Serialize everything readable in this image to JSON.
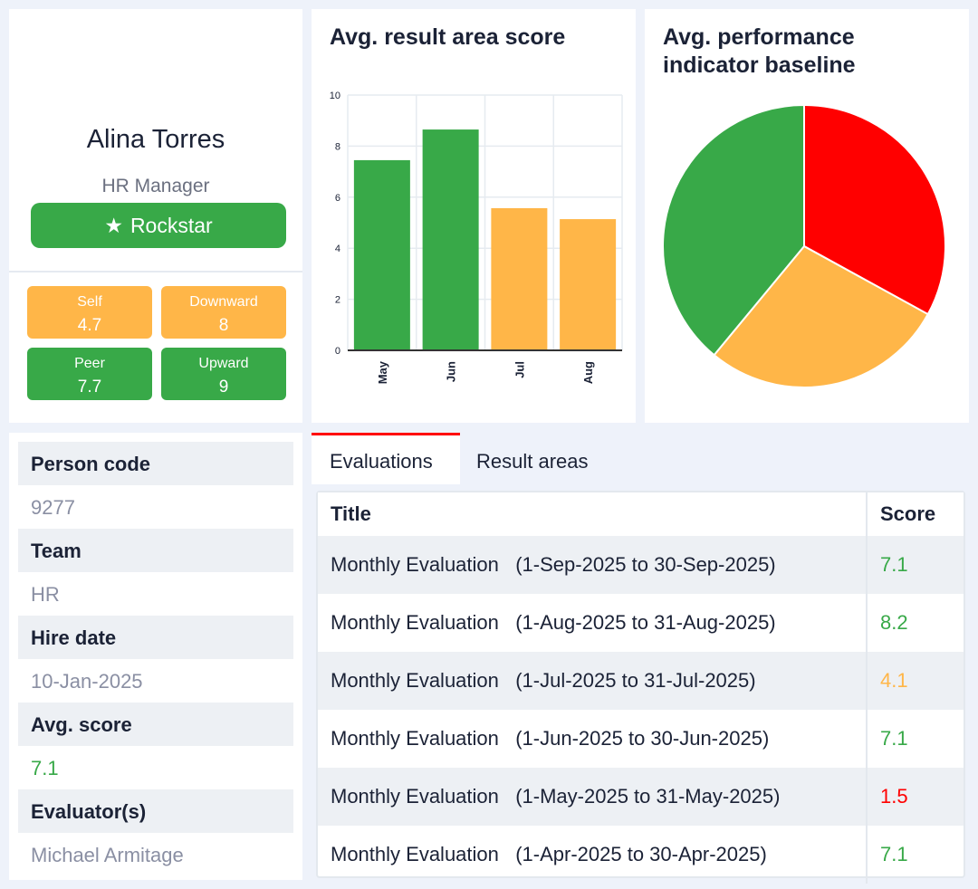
{
  "profile": {
    "name": "Alina Torres",
    "role": "HR Manager",
    "badge": "Rockstar",
    "badge_icon": "star-icon",
    "scores": [
      {
        "label": "Self",
        "value": "4.7",
        "color": "#ffb648"
      },
      {
        "label": "Downward",
        "value": "8",
        "color": "#ffb648"
      },
      {
        "label": "Peer",
        "value": "7.7",
        "color": "#38a948"
      },
      {
        "label": "Upward",
        "value": "9",
        "color": "#38a948"
      }
    ]
  },
  "chart_data": [
    {
      "type": "bar",
      "title": "Avg. result area score",
      "categories": [
        "May",
        "Jun",
        "Jul",
        "Aug"
      ],
      "values": [
        7.45,
        8.65,
        5.57,
        5.14
      ],
      "colors": [
        "#38a948",
        "#38a948",
        "#ffb648",
        "#ffb648"
      ],
      "ylim": [
        0,
        10
      ],
      "yticks": [
        "0",
        "2",
        "4",
        "6",
        "8",
        "10"
      ],
      "grid": true
    },
    {
      "type": "pie",
      "title": "Avg. performance indicator baseline",
      "values": [
        33,
        28,
        39
      ],
      "colors": [
        "#ff0000",
        "#ffb648",
        "#38a948"
      ]
    }
  ],
  "info": {
    "person_code_label": "Person code",
    "person_code": "9277",
    "team_label": "Team",
    "team": "HR",
    "hire_label": "Hire date",
    "hire": "10-Jan-2025",
    "avg_label": "Avg. score",
    "avg": "7.1",
    "avg_color": "#38a948",
    "evaluator_label": "Evaluator(s)",
    "evaluator": "Michael Armitage"
  },
  "tabs": [
    "Evaluations",
    "Result areas"
  ],
  "table": {
    "headers": [
      "Title",
      "Score"
    ],
    "rows": [
      {
        "title": "Monthly Evaluation   (1-Sep-2025 to 30-Sep-2025)",
        "score": "7.1",
        "color": "#38a948"
      },
      {
        "title": "Monthly Evaluation   (1-Aug-2025 to 31-Aug-2025)",
        "score": "8.2",
        "color": "#38a948"
      },
      {
        "title": "Monthly Evaluation   (1-Jul-2025 to 31-Jul-2025)",
        "score": "4.1",
        "color": "#ffb648"
      },
      {
        "title": "Monthly Evaluation   (1-Jun-2025 to 30-Jun-2025)",
        "score": "7.1",
        "color": "#38a948"
      },
      {
        "title": "Monthly Evaluation   (1-May-2025 to 31-May-2025)",
        "score": "1.5",
        "color": "#ff0000"
      },
      {
        "title": "Monthly Evaluation   (1-Apr-2025 to 30-Apr-2025)",
        "score": "7.1",
        "color": "#38a948"
      }
    ]
  }
}
